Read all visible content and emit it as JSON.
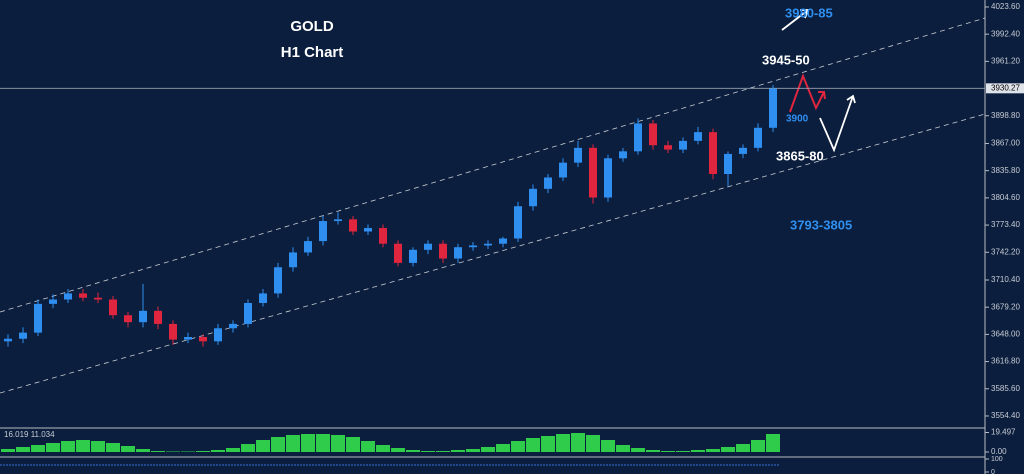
{
  "chart_data": {
    "type": "candlestick",
    "title": "GOLD",
    "subtitle": "H1 Chart",
    "annotations": [
      "3980-85",
      "3945-50",
      "3900",
      "3865-80",
      "3793-3805"
    ],
    "up_color": "#2f8ff0",
    "down_color": "#e0253f",
    "ylim": [
      3540.6,
      4031.6
    ],
    "yticks": [
      {
        "value": 4023.6,
        "label": "4023.60"
      },
      {
        "value": 3992.4,
        "label": "3992.40"
      },
      {
        "value": 3961.2,
        "label": "3961.20"
      },
      {
        "value": 3898.8,
        "label": "3898.80"
      },
      {
        "value": 3867,
        "label": "3867.00"
      },
      {
        "value": 3835.8,
        "label": "3835.80"
      },
      {
        "value": 3804.6,
        "label": "3804.60"
      },
      {
        "value": 3773.4,
        "label": "3773.40"
      },
      {
        "value": 3742.2,
        "label": "3742.20"
      },
      {
        "value": 3710.4,
        "label": "3710.40"
      },
      {
        "value": 3679.2,
        "label": "3679.20"
      },
      {
        "value": 3648,
        "label": "3648.00"
      },
      {
        "value": 3616.8,
        "label": "3616.80"
      },
      {
        "value": 3585.6,
        "label": "3585.60"
      },
      {
        "value": 3554.4,
        "label": "3554.40"
      }
    ],
    "current_price": 3930.27,
    "open": [
      3640,
      3643,
      3650,
      3683,
      3688,
      3695,
      3690,
      3688,
      3670,
      3662,
      3675,
      3660,
      3642,
      3645,
      3640,
      3655,
      3660,
      3684,
      3695,
      3725,
      3742,
      3755,
      3778,
      3780,
      3766,
      3770,
      3752,
      3730,
      3745,
      3752,
      3735,
      3748,
      3750,
      3752,
      3758,
      3795,
      3815,
      3828,
      3845,
      3862,
      3805,
      3850,
      3858,
      3890,
      3865,
      3860,
      3870,
      3880,
      3832,
      3855,
      3862,
      3885
    ],
    "high": [
      3648,
      3656,
      3688,
      3694,
      3700,
      3700,
      3696,
      3692,
      3674,
      3706,
      3680,
      3664,
      3650,
      3648,
      3660,
      3664,
      3688,
      3700,
      3730,
      3748,
      3760,
      3784,
      3788,
      3784,
      3774,
      3774,
      3756,
      3748,
      3756,
      3756,
      3752,
      3754,
      3756,
      3760,
      3800,
      3820,
      3832,
      3850,
      3870,
      3866,
      3854,
      3862,
      3896,
      3894,
      3870,
      3874,
      3886,
      3884,
      3858,
      3866,
      3890,
      3934
    ],
    "low": [
      3634,
      3638,
      3646,
      3678,
      3684,
      3686,
      3684,
      3666,
      3656,
      3656,
      3654,
      3636,
      3638,
      3634,
      3636,
      3650,
      3656,
      3680,
      3690,
      3720,
      3738,
      3750,
      3774,
      3762,
      3762,
      3748,
      3726,
      3726,
      3740,
      3730,
      3730,
      3744,
      3746,
      3748,
      3754,
      3790,
      3810,
      3824,
      3840,
      3798,
      3800,
      3846,
      3854,
      3860,
      3856,
      3856,
      3866,
      3826,
      3818,
      3850,
      3858,
      3880
    ],
    "close": [
      3643,
      3650,
      3683,
      3688,
      3695,
      3690,
      3688,
      3670,
      3662,
      3675,
      3660,
      3642,
      3645,
      3640,
      3655,
      3660,
      3684,
      3695,
      3725,
      3742,
      3755,
      3778,
      3780,
      3766,
      3770,
      3752,
      3730,
      3745,
      3752,
      3735,
      3748,
      3750,
      3752,
      3758,
      3795,
      3815,
      3828,
      3845,
      3862,
      3805,
      3850,
      3858,
      3890,
      3865,
      3860,
      3870,
      3880,
      3832,
      3855,
      3862,
      3885,
      3930
    ],
    "indicator": {
      "label": "16.019 11.034",
      "color": "#2ecc4a",
      "ylim": [
        -4,
        22
      ],
      "yticks": [
        19.497,
        {
          "value": 0,
          "label": "0.00"
        }
      ],
      "values": [
        3,
        5,
        7,
        9,
        11,
        12,
        11,
        9,
        6,
        3,
        1,
        0.5,
        0.5,
        1,
        2,
        4,
        8,
        12,
        15,
        17,
        18,
        18,
        17,
        15,
        11,
        7,
        4,
        2,
        1,
        1,
        2,
        3,
        5,
        8,
        11,
        14,
        16,
        18,
        19,
        17,
        12,
        7,
        4,
        2,
        1,
        1,
        2,
        3,
        5,
        8,
        12,
        18
      ]
    },
    "oscillator": {
      "ylim": [
        0,
        100
      ],
      "yticks": [
        100,
        0
      ]
    }
  }
}
